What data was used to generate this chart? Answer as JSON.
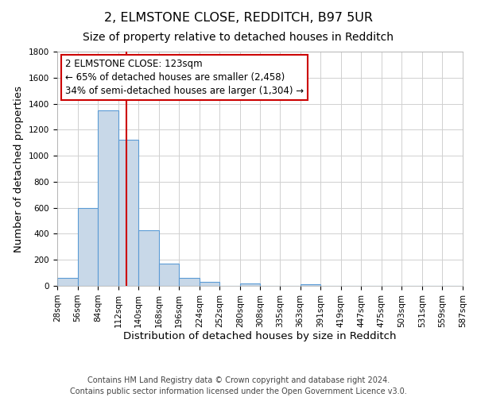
{
  "title": "2, ELMSTONE CLOSE, REDDITCH, B97 5UR",
  "subtitle": "Size of property relative to detached houses in Redditch",
  "xlabel": "Distribution of detached houses by size in Redditch",
  "ylabel": "Number of detached properties",
  "footer_lines": [
    "Contains HM Land Registry data © Crown copyright and database right 2024.",
    "Contains public sector information licensed under the Open Government Licence v3.0."
  ],
  "bin_edges": [
    28,
    56,
    84,
    112,
    140,
    168,
    196,
    224,
    252,
    280,
    308,
    335,
    363,
    391,
    419,
    447,
    475,
    503,
    531,
    559,
    587
  ],
  "bar_heights": [
    60,
    600,
    1350,
    1120,
    425,
    170,
    60,
    30,
    0,
    20,
    0,
    0,
    10,
    0,
    0,
    0,
    0,
    0,
    0,
    0
  ],
  "bar_color": "#c8d8e8",
  "bar_edge_color": "#5b9bd5",
  "property_line_x": 123,
  "property_line_color": "#cc0000",
  "ylim": [
    0,
    1800
  ],
  "yticks": [
    0,
    200,
    400,
    600,
    800,
    1000,
    1200,
    1400,
    1600,
    1800
  ],
  "annotation_line1": "2 ELMSTONE CLOSE: 123sqm",
  "annotation_line2": "← 65% of detached houses are smaller (2,458)",
  "annotation_line3": "34% of semi-detached houses are larger (1,304) →",
  "annotation_box_color": "#ffffff",
  "annotation_box_edge_color": "#cc0000",
  "grid_color": "#d0d0d0",
  "background_color": "#ffffff",
  "title_fontsize": 11.5,
  "subtitle_fontsize": 10,
  "axis_label_fontsize": 9.5,
  "tick_label_fontsize": 7.5,
  "annotation_fontsize": 8.5,
  "footer_fontsize": 7
}
